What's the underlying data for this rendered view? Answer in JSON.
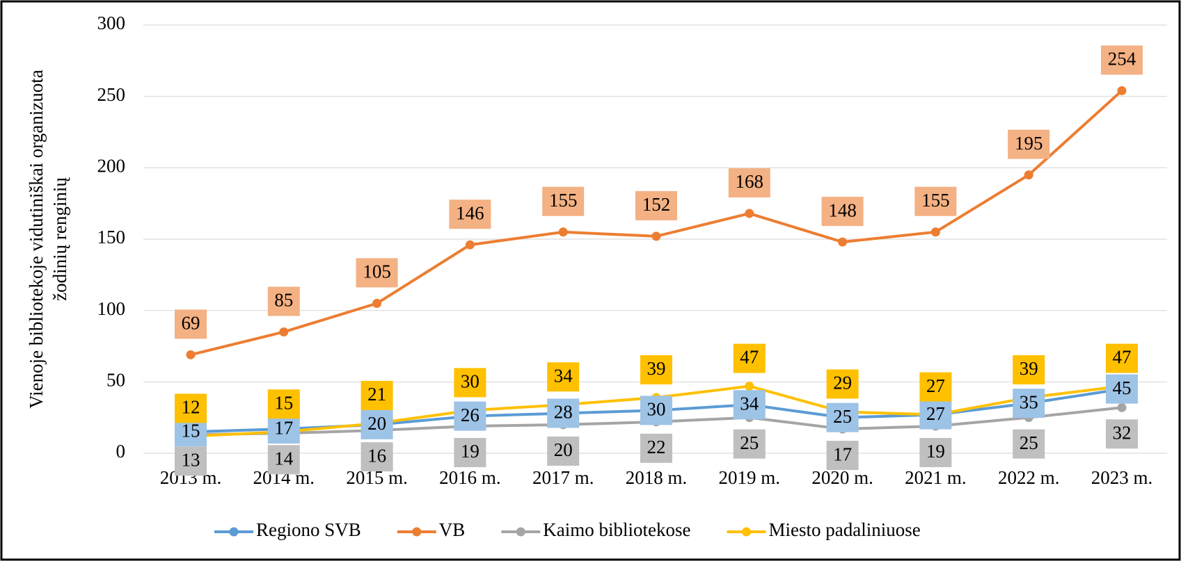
{
  "chart_data": {
    "type": "line",
    "ylabel": [
      "Vienoje bibliotekoje vidutiniškai organizuota",
      "žodinių renginių"
    ],
    "categories": [
      "2013 m.",
      "2014 m.",
      "2015 m.",
      "2016 m.",
      "2017 m.",
      "2018 m.",
      "2019 m.",
      "2020 m.",
      "2021 m.",
      "2022 m.",
      "2023 m."
    ],
    "series": [
      {
        "name": "Regiono SVB",
        "color": "#5b9bd5",
        "label_color": "#9dc3e6",
        "values": [
          15,
          17,
          20,
          26,
          28,
          30,
          34,
          25,
          27,
          35,
          45
        ]
      },
      {
        "name": "VB",
        "color": "#ed7d31",
        "label_color": "#f4b183",
        "values": [
          69,
          85,
          105,
          146,
          155,
          152,
          168,
          148,
          155,
          195,
          254
        ]
      },
      {
        "name": "Kaimo bibliotekose",
        "color": "#a5a5a5",
        "label_color": "#bfbfbf",
        "values": [
          13,
          14,
          16,
          19,
          20,
          22,
          25,
          17,
          19,
          25,
          32
        ]
      },
      {
        "name": "Miesto padaliniuose",
        "color": "#ffc000",
        "label_color": "#ffc000",
        "values": [
          12,
          15,
          21,
          30,
          34,
          39,
          47,
          29,
          27,
          39,
          47
        ]
      }
    ],
    "ylim": [
      0,
      300
    ],
    "yticks": [
      0,
      50,
      100,
      150,
      200,
      250,
      300
    ],
    "grid": true,
    "legend": "bottom"
  }
}
